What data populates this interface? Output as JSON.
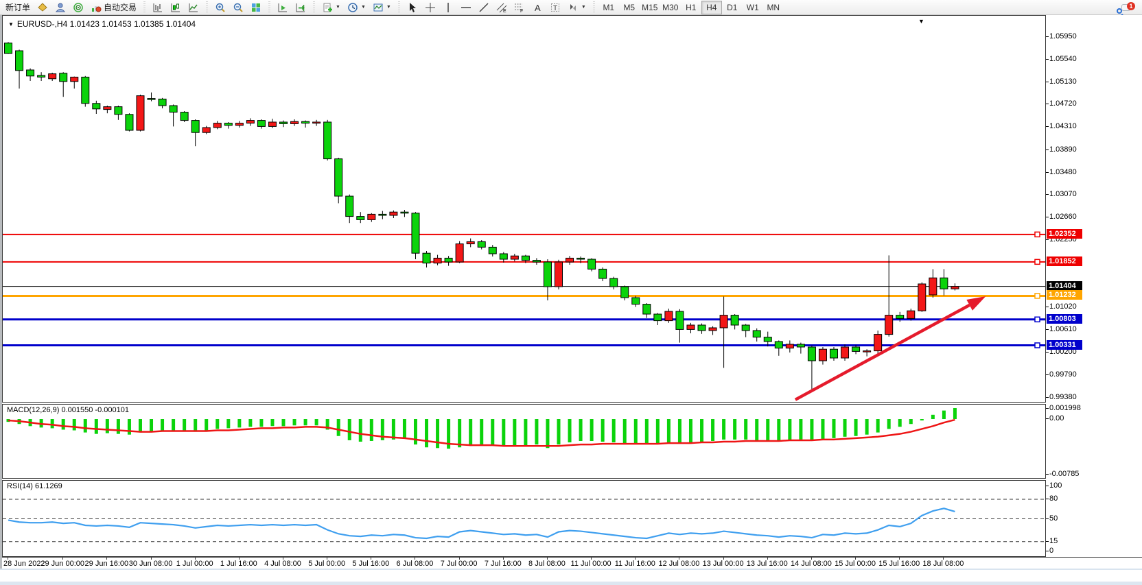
{
  "toolbar": {
    "new_order": "新订单",
    "autotrading": "自动交易",
    "timeframes": [
      "M1",
      "M5",
      "M15",
      "M30",
      "H1",
      "H4",
      "D1",
      "W1",
      "MN"
    ],
    "active_timeframe": "H4",
    "chat_badge_count": "1",
    "icons": {
      "market-watch-icon": "gold-diamond",
      "data-window-icon": "blue-figure",
      "navigator-icon": "green-broadcast",
      "autotrading-icon": "red-green-chart",
      "chart-bars-icon": "bar-chart",
      "chart-candles-icon": "candlestick-chart",
      "chart-line-icon": "line-chart",
      "zoom-in-icon": "magnifier-plus",
      "zoom-out-icon": "magnifier-minus",
      "tile-windows-icon": "tiled-squares",
      "auto-scroll-icon": "axis-arrow-right",
      "chart-shift-icon": "axis-arrow-shift",
      "add-indicator-icon": "document-green-plus",
      "period-icon": "clock",
      "template-icon": "picture",
      "cursor-icon": "arrow-pointer",
      "crosshair-icon": "crosshair",
      "vline-icon": "vertical-line",
      "hline-icon": "horizontal-line",
      "trendline-icon": "diagonal-line",
      "channel-icon": "channel-E",
      "fibonacci-icon": "grid-F",
      "text-icon": "letter-A",
      "label-icon": "boxed-T",
      "shapes-icon": "arrow-shapes",
      "search-icon": "magnifier",
      "chat-icon": "speech-bubble"
    }
  },
  "chart": {
    "title": "EURUSD-,H4 1.01423 1.01453 1.01385 1.01404",
    "macd_label": "MACD(12,26,9) 0.001550 -0.000101",
    "rsi_label": "RSI(14) 61.1269"
  },
  "chart_data": {
    "type": "candlestick",
    "symbol": "EURUSD-",
    "timeframe": "H4",
    "quote": {
      "open": 1.01423,
      "high": 1.01453,
      "low": 1.01385,
      "close": 1.01404
    },
    "bull_color": "#f31717",
    "bear_color": "#0bd30b",
    "candles": [
      [
        1.0584,
        1.0586,
        1.0564,
        1.0565
      ],
      [
        1.057,
        1.0572,
        1.0501,
        1.0534
      ],
      [
        1.0535,
        1.0538,
        1.0515,
        1.0524
      ],
      [
        1.0525,
        1.0531,
        1.0515,
        1.0522
      ],
      [
        1.0519,
        1.053,
        1.0515,
        1.0528
      ],
      [
        1.0529,
        1.0531,
        1.0486,
        1.0514
      ],
      [
        1.0514,
        1.0523,
        1.0501,
        1.0522
      ],
      [
        1.0522,
        1.0524,
        1.0468,
        1.0474
      ],
      [
        1.0474,
        1.0479,
        1.0455,
        1.0464
      ],
      [
        1.0463,
        1.047,
        1.0456,
        1.0468
      ],
      [
        1.0468,
        1.047,
        1.0444,
        1.0454
      ],
      [
        1.0454,
        1.0456,
        1.0423,
        1.0425
      ],
      [
        1.0425,
        1.049,
        1.0423,
        1.0488
      ],
      [
        1.0483,
        1.0494,
        1.0478,
        1.0482
      ],
      [
        1.0482,
        1.0484,
        1.0465,
        1.047
      ],
      [
        1.047,
        1.0472,
        1.0432,
        1.0458
      ],
      [
        1.0458,
        1.046,
        1.044,
        1.0443
      ],
      [
        1.0443,
        1.0445,
        1.0396,
        1.0421
      ],
      [
        1.0421,
        1.0433,
        1.0418,
        1.043
      ],
      [
        1.043,
        1.0442,
        1.0427,
        1.0438
      ],
      [
        1.0438,
        1.044,
        1.0428,
        1.0434
      ],
      [
        1.0434,
        1.0442,
        1.043,
        1.0438
      ],
      [
        1.0438,
        1.0447,
        1.0433,
        1.0443
      ],
      [
        1.0443,
        1.0445,
        1.0428,
        1.0432
      ],
      [
        1.0432,
        1.0446,
        1.0429,
        1.044
      ],
      [
        1.044,
        1.0443,
        1.0431,
        1.0437
      ],
      [
        1.0437,
        1.0445,
        1.0433,
        1.0441
      ],
      [
        1.0441,
        1.0443,
        1.043,
        1.0438
      ],
      [
        1.0438,
        1.0444,
        1.0433,
        1.044
      ],
      [
        1.044,
        1.0444,
        1.037,
        1.0373
      ],
      [
        1.0373,
        1.0375,
        1.0292,
        1.0305
      ],
      [
        1.0305,
        1.0308,
        1.0256,
        1.0268
      ],
      [
        1.0268,
        1.0276,
        1.0256,
        1.0262
      ],
      [
        1.0262,
        1.0274,
        1.0258,
        1.0272
      ],
      [
        1.0272,
        1.0278,
        1.0263,
        1.027
      ],
      [
        1.027,
        1.0279,
        1.0265,
        1.0276
      ],
      [
        1.0276,
        1.028,
        1.0267,
        1.0274
      ],
      [
        1.0274,
        1.0276,
        1.019,
        1.0201
      ],
      [
        1.0201,
        1.0205,
        1.0175,
        1.0183
      ],
      [
        1.0183,
        1.0198,
        1.0179,
        1.0192
      ],
      [
        1.0192,
        1.0196,
        1.0178,
        1.0185
      ],
      [
        1.0185,
        1.0223,
        1.0183,
        1.0218
      ],
      [
        1.0218,
        1.0228,
        1.0212,
        1.0222
      ],
      [
        1.0222,
        1.0225,
        1.0208,
        1.0212
      ],
      [
        1.0212,
        1.0216,
        1.0195,
        1.02
      ],
      [
        1.02,
        1.0203,
        1.0184,
        1.019
      ],
      [
        1.019,
        1.02,
        1.0186,
        1.0196
      ],
      [
        1.0196,
        1.0198,
        1.0183,
        1.0188
      ],
      [
        1.0188,
        1.0192,
        1.018,
        1.0185
      ],
      [
        1.0185,
        1.019,
        1.0115,
        1.014
      ],
      [
        1.014,
        1.0189,
        1.0135,
        1.0185
      ],
      [
        1.0185,
        1.0196,
        1.018,
        1.0192
      ],
      [
        1.0192,
        1.0195,
        1.0183,
        1.019
      ],
      [
        1.019,
        1.0192,
        1.0168,
        1.0172
      ],
      [
        1.0172,
        1.0175,
        1.015,
        1.0155
      ],
      [
        1.0155,
        1.0158,
        1.0135,
        1.014
      ],
      [
        1.014,
        1.0142,
        1.0115,
        1.012
      ],
      [
        1.012,
        1.0123,
        1.0103,
        1.0108
      ],
      [
        1.0108,
        1.011,
        1.0083,
        1.009
      ],
      [
        1.009,
        1.0092,
        1.007,
        1.0078
      ],
      [
        1.0078,
        1.01,
        1.0074,
        1.0095
      ],
      [
        1.0095,
        1.0099,
        1.0038,
        1.0062
      ],
      [
        1.0062,
        1.0074,
        1.0055,
        1.007
      ],
      [
        1.007,
        1.0073,
        1.0054,
        1.006
      ],
      [
        1.006,
        1.0068,
        1.0052,
        1.0065
      ],
      [
        1.0065,
        1.0122,
        0.9992,
        1.0088
      ],
      [
        1.0088,
        1.009,
        1.0062,
        1.007
      ],
      [
        1.007,
        1.0072,
        1.0048,
        1.006
      ],
      [
        1.006,
        1.0064,
        1.004,
        1.0048
      ],
      [
        1.0048,
        1.0058,
        1.0031,
        1.004
      ],
      [
        1.004,
        1.0042,
        1.0014,
        1.0028
      ],
      [
        1.0028,
        1.0042,
        1.002,
        1.0035
      ],
      [
        1.0035,
        1.0038,
        1.0018,
        1.003
      ],
      [
        1.003,
        1.0033,
        0.9952,
        1.0005
      ],
      [
        1.0005,
        1.003,
        0.9998,
        1.0026
      ],
      [
        1.0026,
        1.003,
        1.0005,
        1.001
      ],
      [
        1.001,
        1.0035,
        1.0005,
        1.003
      ],
      [
        1.003,
        1.0034,
        1.0017,
        1.0022
      ],
      [
        1.0022,
        1.0026,
        1.0013,
        1.0023
      ],
      [
        1.0023,
        1.006,
        1.0018,
        1.0053
      ],
      [
        1.0053,
        1.0197,
        1.0049,
        1.0088
      ],
      [
        1.0088,
        1.0094,
        1.0076,
        1.0082
      ],
      [
        1.0082,
        1.01,
        1.0078,
        1.0096
      ],
      [
        1.0096,
        1.0148,
        1.0094,
        1.0145
      ],
      [
        1.0125,
        1.0172,
        1.012,
        1.0156
      ],
      [
        1.0156,
        1.0172,
        1.0124,
        1.0136
      ],
      [
        1.0136,
        1.0146,
        1.0133,
        1.01404
      ]
    ],
    "x_labels": [
      {
        "text": "28 Jun 2022",
        "candle": 0
      },
      {
        "text": "29 Jun 00:00",
        "candle": 5
      },
      {
        "text": "29 Jun 16:00",
        "candle": 9
      },
      {
        "text": "30 Jun 08:00",
        "candle": 13
      },
      {
        "text": "1 Jul 00:00",
        "candle": 17
      },
      {
        "text": "1 Jul 16:00",
        "candle": 21
      },
      {
        "text": "4 Jul 08:00",
        "candle": 25
      },
      {
        "text": "5 Jul 00:00",
        "candle": 29
      },
      {
        "text": "5 Jul 16:00",
        "candle": 33
      },
      {
        "text": "6 Jul 08:00",
        "candle": 37
      },
      {
        "text": "7 Jul 00:00",
        "candle": 41
      },
      {
        "text": "7 Jul 16:00",
        "candle": 45
      },
      {
        "text": "8 Jul 08:00",
        "candle": 49
      },
      {
        "text": "11 Jul 00:00",
        "candle": 53
      },
      {
        "text": "11 Jul 16:00",
        "candle": 57
      },
      {
        "text": "12 Jul 08:00",
        "candle": 61
      },
      {
        "text": "13 Jul 00:00",
        "candle": 65
      },
      {
        "text": "13 Jul 16:00",
        "candle": 69
      },
      {
        "text": "14 Jul 08:00",
        "candle": 73
      },
      {
        "text": "15 Jul 00:00",
        "candle": 77
      },
      {
        "text": "15 Jul 16:00",
        "candle": 81
      },
      {
        "text": "18 Jul 08:00",
        "candle": 85
      }
    ],
    "price_ticks": [
      {
        "label": "1.05950",
        "value": 1.0595
      },
      {
        "label": "1.05540",
        "value": 1.0554
      },
      {
        "label": "1.05130",
        "value": 1.0513
      },
      {
        "label": "1.04720",
        "value": 1.0472
      },
      {
        "label": "1.04310",
        "value": 1.0431
      },
      {
        "label": "1.03890",
        "value": 1.0389
      },
      {
        "label": "1.03480",
        "value": 1.0348
      },
      {
        "label": "1.03070",
        "value": 1.0307
      },
      {
        "label": "1.02660",
        "value": 1.0266
      },
      {
        "label": "1.02250",
        "value": 1.0225
      },
      {
        "label": "1.01020",
        "value": 1.0102
      },
      {
        "label": "1.00610",
        "value": 1.0061
      },
      {
        "label": "1.00200",
        "value": 1.002
      },
      {
        "label": "0.99790",
        "value": 0.9979
      },
      {
        "label": "0.99380",
        "value": 0.9938
      }
    ],
    "price_lines": [
      {
        "label": "1.02352",
        "value": 1.02352,
        "color": "#ee0000",
        "width": 2,
        "kind": "resistance"
      },
      {
        "label": "1.01852",
        "value": 1.01852,
        "color": "#ee0000",
        "width": 2,
        "kind": "resistance"
      },
      {
        "label": "1.01404",
        "value": 1.01404,
        "color": "#000000",
        "width": 1,
        "kind": "current-price"
      },
      {
        "label": "1.01232",
        "value": 1.01232,
        "color": "#ffa500",
        "width": 3,
        "kind": "pivot"
      },
      {
        "label": "1.00803",
        "value": 1.00803,
        "color": "#0000cc",
        "width": 3,
        "kind": "support"
      },
      {
        "label": "1.00331",
        "value": 1.00331,
        "color": "#0000cc",
        "width": 3,
        "kind": "support"
      }
    ],
    "macd": {
      "name": "MACD",
      "params": "12,26,9",
      "main_last": 0.00155,
      "signal_last": -0.000101,
      "axis_ticks": [
        {
          "label": "0.001998",
          "value": 0.001998
        },
        {
          "label": "0.00",
          "value": 0
        },
        {
          "label": "-0.00785",
          "value": -0.00785
        }
      ],
      "hist_color": "#0bd30b",
      "signal_color": "#ee1515",
      "histogram": [
        -0.0004,
        -0.0007,
        -0.001,
        -0.0012,
        -0.0013,
        -0.0015,
        -0.0016,
        -0.0019,
        -0.0021,
        -0.002,
        -0.0021,
        -0.0022,
        -0.0019,
        -0.0017,
        -0.0016,
        -0.0016,
        -0.0017,
        -0.0018,
        -0.0016,
        -0.0014,
        -0.0013,
        -0.0012,
        -0.0011,
        -0.0011,
        -0.001,
        -0.001,
        -0.0009,
        -0.0009,
        -0.0009,
        -0.0015,
        -0.0024,
        -0.003,
        -0.0032,
        -0.0031,
        -0.003,
        -0.0029,
        -0.0028,
        -0.0036,
        -0.004,
        -0.0041,
        -0.0042,
        -0.004,
        -0.0038,
        -0.0037,
        -0.0037,
        -0.0038,
        -0.0038,
        -0.0037,
        -0.0036,
        -0.0041,
        -0.0036,
        -0.0033,
        -0.0031,
        -0.0031,
        -0.0032,
        -0.0033,
        -0.0034,
        -0.0035,
        -0.0035,
        -0.0035,
        -0.0033,
        -0.0034,
        -0.0033,
        -0.0032,
        -0.0031,
        -0.0029,
        -0.0029,
        -0.0029,
        -0.003,
        -0.003,
        -0.0031,
        -0.003,
        -0.0029,
        -0.003,
        -0.0028,
        -0.0027,
        -0.0025,
        -0.0024,
        -0.0022,
        -0.0019,
        -0.0014,
        -0.0011,
        -0.0007,
        -0.0002,
        0.0006,
        0.0012,
        0.00155
      ],
      "signal": [
        -0.0002,
        -0.0003,
        -0.0005,
        -0.0007,
        -0.0008,
        -0.001,
        -0.0011,
        -0.0013,
        -0.0014,
        -0.0015,
        -0.0016,
        -0.0017,
        -0.0018,
        -0.0018,
        -0.0017,
        -0.0017,
        -0.0017,
        -0.0017,
        -0.0017,
        -0.0016,
        -0.0016,
        -0.0015,
        -0.0014,
        -0.0013,
        -0.0013,
        -0.0012,
        -0.0012,
        -0.0011,
        -0.0011,
        -0.0012,
        -0.0015,
        -0.0018,
        -0.0021,
        -0.0023,
        -0.0025,
        -0.0026,
        -0.0027,
        -0.0029,
        -0.0031,
        -0.0033,
        -0.0035,
        -0.0036,
        -0.0037,
        -0.0037,
        -0.0037,
        -0.0038,
        -0.0038,
        -0.0038,
        -0.0038,
        -0.0038,
        -0.0038,
        -0.0037,
        -0.0036,
        -0.0036,
        -0.0035,
        -0.0035,
        -0.0035,
        -0.0035,
        -0.0035,
        -0.0035,
        -0.0034,
        -0.0034,
        -0.0034,
        -0.0033,
        -0.0033,
        -0.0032,
        -0.0032,
        -0.0031,
        -0.0031,
        -0.0031,
        -0.0031,
        -0.003,
        -0.003,
        -0.003,
        -0.0029,
        -0.0029,
        -0.0028,
        -0.0027,
        -0.0026,
        -0.0025,
        -0.0023,
        -0.0021,
        -0.0018,
        -0.0014,
        -0.001,
        -0.0005,
        -0.000101
      ]
    },
    "rsi": {
      "name": "RSI",
      "params": "14",
      "last": 61.1269,
      "levels": [
        80,
        50,
        15
      ],
      "axis_ticks": [
        {
          "label": "100",
          "value": 100
        },
        {
          "label": "80",
          "value": 80
        },
        {
          "label": "50",
          "value": 50
        },
        {
          "label": "15",
          "value": 15
        },
        {
          "label": "0",
          "value": 0
        }
      ],
      "color": "#3f9fef",
      "values": [
        48,
        45,
        44,
        44,
        45,
        43,
        44,
        40,
        39,
        40,
        39,
        37,
        44,
        43,
        42,
        41,
        39,
        36,
        38,
        40,
        39,
        40,
        41,
        40,
        41,
        40,
        41,
        40,
        41,
        33,
        27,
        24,
        23,
        25,
        24,
        26,
        25,
        21,
        20,
        23,
        22,
        30,
        32,
        30,
        28,
        26,
        27,
        25,
        26,
        22,
        30,
        32,
        31,
        29,
        27,
        25,
        23,
        21,
        20,
        24,
        28,
        26,
        28,
        27,
        28,
        31,
        29,
        27,
        25,
        24,
        22,
        24,
        23,
        21,
        26,
        25,
        28,
        27,
        28,
        33,
        40,
        38,
        43,
        55,
        62,
        66,
        61.13
      ]
    },
    "trend_arrow": {
      "color": "#e51b2c",
      "from": {
        "candle": 71.5,
        "price": 0.9934
      },
      "to": {
        "candle": 88.8,
        "price": 1.01225
      }
    }
  }
}
